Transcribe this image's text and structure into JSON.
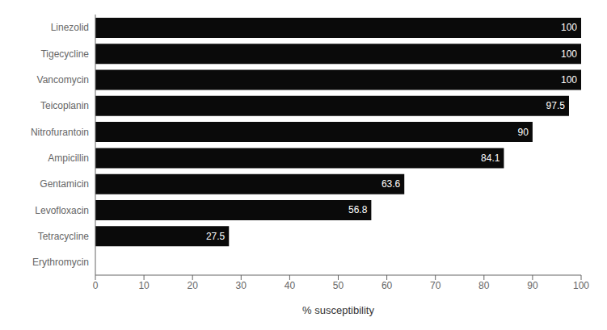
{
  "chart_data": {
    "type": "bar",
    "orientation": "horizontal",
    "categories": [
      "Erythromycin",
      "Tetracycline",
      "Levofloxacin",
      "Gentamicin",
      "Ampicillin",
      "Nitrofurantoin",
      "Teicoplanin",
      "Vancomycin",
      "Tigecycline",
      "Linezolid"
    ],
    "values": [
      0,
      27.5,
      56.8,
      63.6,
      84.1,
      90,
      97.5,
      100,
      100,
      100
    ],
    "color": "#0a0a0a",
    "x_label": "% susceptibility",
    "xlim": [
      0,
      100
    ],
    "xticks": [
      0,
      10,
      20,
      30,
      40,
      50,
      60,
      70,
      80,
      90,
      100
    ],
    "data_labels": true,
    "grid": false
  }
}
